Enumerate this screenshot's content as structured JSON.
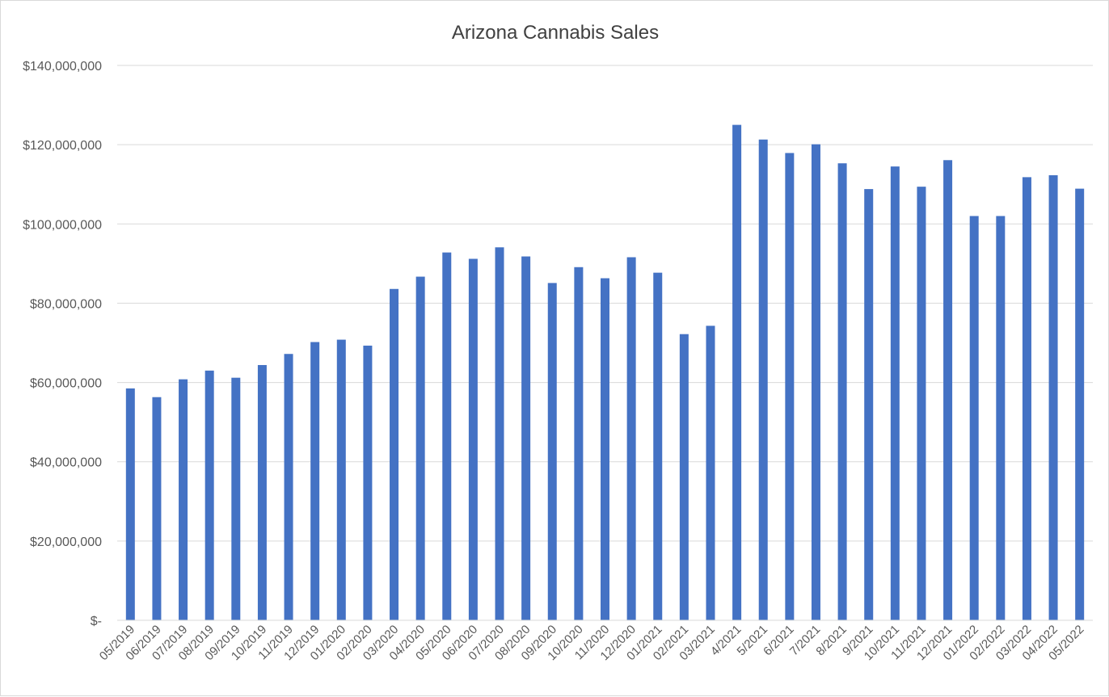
{
  "chart_data": {
    "type": "bar",
    "title": "Arizona Cannabis Sales",
    "xlabel": "",
    "ylabel": "",
    "ylim": [
      0,
      140000000
    ],
    "yticks": [
      {
        "value": 0,
        "label": "$-"
      },
      {
        "value": 20000000,
        "label": "$20,000,000"
      },
      {
        "value": 40000000,
        "label": "$40,000,000"
      },
      {
        "value": 60000000,
        "label": "$60,000,000"
      },
      {
        "value": 80000000,
        "label": "$80,000,000"
      },
      {
        "value": 100000000,
        "label": "$100,000,000"
      },
      {
        "value": 120000000,
        "label": "$120,000,000"
      },
      {
        "value": 140000000,
        "label": "$140,000,000"
      }
    ],
    "grid": true,
    "legend": "none",
    "bar_color": "#4472c4",
    "categories": [
      "05/2019",
      "06/2019",
      "07/2019",
      "08/2019",
      "09/2019",
      "10/2019",
      "11/2019",
      "12/2019",
      "01/2020",
      "02/2020",
      "03/2020",
      "04/2020",
      "05/2020",
      "06/2020",
      "07/2020",
      "08/2020",
      "09/2020",
      "10/2020",
      "11/2020",
      "12/2020",
      "01/2021",
      "02/2021",
      "03/2021",
      "4/2021",
      "5/2021",
      "6/2021",
      "7/2021",
      "8/2021",
      "9/2021",
      "10/2021",
      "11/2021",
      "12/2021",
      "01/2022",
      "02/2022",
      "03/2022",
      "04/2022",
      "05/2022"
    ],
    "values": [
      58500000,
      56300000,
      60800000,
      63000000,
      61200000,
      64400000,
      67200000,
      70200000,
      70800000,
      69300000,
      83600000,
      86700000,
      92800000,
      91200000,
      94100000,
      91800000,
      85100000,
      89100000,
      86300000,
      91600000,
      87700000,
      72200000,
      74300000,
      125000000,
      121300000,
      117900000,
      120100000,
      115300000,
      108800000,
      114500000,
      109400000,
      116100000,
      102000000,
      102000000,
      111800000,
      112300000,
      108900000
    ]
  }
}
